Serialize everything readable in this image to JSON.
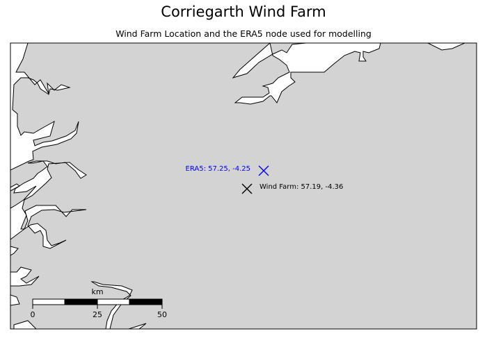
{
  "title": "Corriegarth Wind Farm",
  "subtitle": "Wind Farm Location and the ERA5 node used for modelling",
  "colors": {
    "water": "#d3d3d3",
    "land": "#ffffff",
    "era5_marker": "#0000ff",
    "windfarm_marker": "#000000"
  },
  "markers": {
    "era5": {
      "label": "ERA5: 57.25, -4.25",
      "lat": 57.25,
      "lon": -4.25,
      "symbol": "x-icon"
    },
    "wind_farm": {
      "label": "Wind Farm: 57.19, -4.36",
      "lat": 57.19,
      "lon": -4.36,
      "symbol": "x-icon"
    }
  },
  "scale_bar": {
    "unit": "km",
    "ticks": [
      "0",
      "25",
      "50"
    ]
  }
}
